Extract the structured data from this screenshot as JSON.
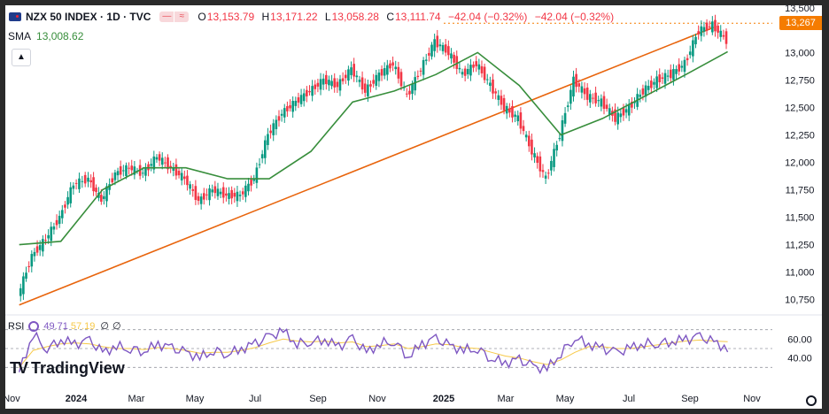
{
  "header": {
    "symbol": "NZX 50 INDEX",
    "interval": "1D",
    "source": "TVC",
    "separator": "·",
    "ohlc": {
      "o_label": "O",
      "o": "13,153.79",
      "h_label": "H",
      "h": "13,171.22",
      "l_label": "L",
      "l": "13,058.28",
      "c_label": "C",
      "c": "13,111.74",
      "change": "−42.04 (−0.32%)",
      "change2": "−42.04 (−0.32%)"
    }
  },
  "sma_legend": {
    "label": "SMA",
    "value": "13,008.62"
  },
  "price_tag": "13,267",
  "rsi_legend": {
    "label": "RSI",
    "rsi": "49.71",
    "ma": "57.19",
    "z1": "∅",
    "z2": "∅"
  },
  "brand": "TradingView",
  "colors": {
    "up": "#089981",
    "down": "#f23645",
    "sma": "#388e3c",
    "trendline": "#e8640c",
    "rsi": "#7e57c2",
    "rsi_ma": "#f7c948",
    "dotted": "#f57c00"
  },
  "chart_data": [
    {
      "type": "candlestick",
      "title": "NZX 50 INDEX · 1D · TVC",
      "ylim": [
        10650,
        13350
      ],
      "yticks": [
        10750,
        11000,
        11250,
        11500,
        11750,
        12000,
        12250,
        12500,
        12750,
        13000
      ],
      "ytick_labels": [
        "10,750",
        "11,000",
        "11,250",
        "11,500",
        "11,750",
        "12,000",
        "12,250",
        "12,500",
        "12,750",
        "13,000"
      ],
      "top_partial_label": "13,500",
      "xticks": [
        "Nov",
        "2024",
        "Mar",
        "May",
        "Jul",
        "Sep",
        "Nov",
        "2025",
        "Mar",
        "May",
        "Jul",
        "Sep",
        "Nov"
      ],
      "bold_xticks": [
        "2024",
        "2025"
      ],
      "close_series": {
        "x": [
          "2023-10-23",
          "2023-11-06",
          "2023-11-20",
          "2023-12-04",
          "2023-12-18",
          "2024-01-02",
          "2024-01-15",
          "2024-01-29",
          "2024-02-12",
          "2024-02-26",
          "2024-03-11",
          "2024-03-25",
          "2024-04-08",
          "2024-04-22",
          "2024-05-06",
          "2024-05-20",
          "2024-06-03",
          "2024-06-17",
          "2024-07-01",
          "2024-07-15",
          "2024-07-29",
          "2024-08-12",
          "2024-08-26",
          "2024-09-09",
          "2024-09-23",
          "2024-10-07",
          "2024-10-21",
          "2024-11-04",
          "2024-11-18",
          "2024-12-02",
          "2024-12-16",
          "2024-12-30",
          "2025-01-13",
          "2025-01-27",
          "2025-02-10",
          "2025-02-24",
          "2025-03-10",
          "2025-03-24",
          "2025-04-07",
          "2025-04-21",
          "2025-05-05",
          "2025-05-19",
          "2025-06-02",
          "2025-06-16",
          "2025-06-30",
          "2025-07-14",
          "2025-07-28",
          "2025-08-11",
          "2025-08-25",
          "2025-09-08",
          "2025-09-22",
          "2025-10-06"
        ],
        "close": [
          10780,
          11150,
          11300,
          11500,
          11800,
          11850,
          11650,
          11900,
          11950,
          11900,
          12050,
          11950,
          11850,
          11650,
          11750,
          11700,
          11700,
          11850,
          12250,
          12450,
          12550,
          12650,
          12750,
          12700,
          12850,
          12650,
          12800,
          12900,
          12600,
          12850,
          13100,
          13000,
          12800,
          12900,
          12700,
          12500,
          12400,
          12100,
          11850,
          12250,
          12750,
          12600,
          12550,
          12400,
          12500,
          12650,
          12750,
          12800,
          12900,
          13200,
          13250,
          13111.74
        ]
      },
      "sma_series": {
        "x": [
          "2023-10-23",
          "2023-12-04",
          "2024-01-15",
          "2024-02-26",
          "2024-04-08",
          "2024-05-20",
          "2024-07-01",
          "2024-08-12",
          "2024-09-23",
          "2024-11-04",
          "2024-12-16",
          "2025-01-27",
          "2025-03-10",
          "2025-04-21",
          "2025-06-02",
          "2025-07-14",
          "2025-08-25",
          "2025-10-06"
        ],
        "sma": [
          11250,
          11280,
          11750,
          11950,
          11950,
          11850,
          11850,
          12100,
          12550,
          12650,
          12800,
          13000,
          12700,
          12250,
          12400,
          12600,
          12800,
          13008.62
        ]
      },
      "trendline": {
        "start": [
          "2023-10-23",
          10700
        ],
        "end": [
          "2025-09-22",
          13230
        ]
      },
      "horizontal_line": 13267
    },
    {
      "type": "line",
      "title": "RSI",
      "ylim": [
        20,
        80
      ],
      "yticks": [
        40,
        60
      ],
      "ytick_labels": [
        "40.00",
        "60.00"
      ],
      "bands": [
        30,
        50,
        70
      ],
      "rsi": [
        25,
        65,
        50,
        60,
        55,
        58,
        45,
        52,
        50,
        48,
        55,
        50,
        45,
        40,
        48,
        45,
        50,
        55,
        62,
        68,
        55,
        58,
        60,
        52,
        60,
        45,
        55,
        58,
        42,
        55,
        60,
        52,
        48,
        50,
        40,
        35,
        38,
        30,
        28,
        45,
        62,
        55,
        50,
        45,
        50,
        55,
        56,
        58,
        60,
        62,
        56,
        49.71
      ],
      "rsi_ma": [
        30,
        48,
        52,
        55,
        56,
        55,
        52,
        50,
        50,
        49,
        51,
        50,
        48,
        45,
        46,
        46,
        48,
        51,
        56,
        60,
        58,
        57,
        58,
        56,
        57,
        52,
        53,
        55,
        50,
        52,
        55,
        54,
        51,
        50,
        46,
        42,
        40,
        36,
        33,
        38,
        46,
        52,
        52,
        50,
        50,
        52,
        54,
        56,
        58,
        59,
        58,
        57.19
      ]
    }
  ]
}
